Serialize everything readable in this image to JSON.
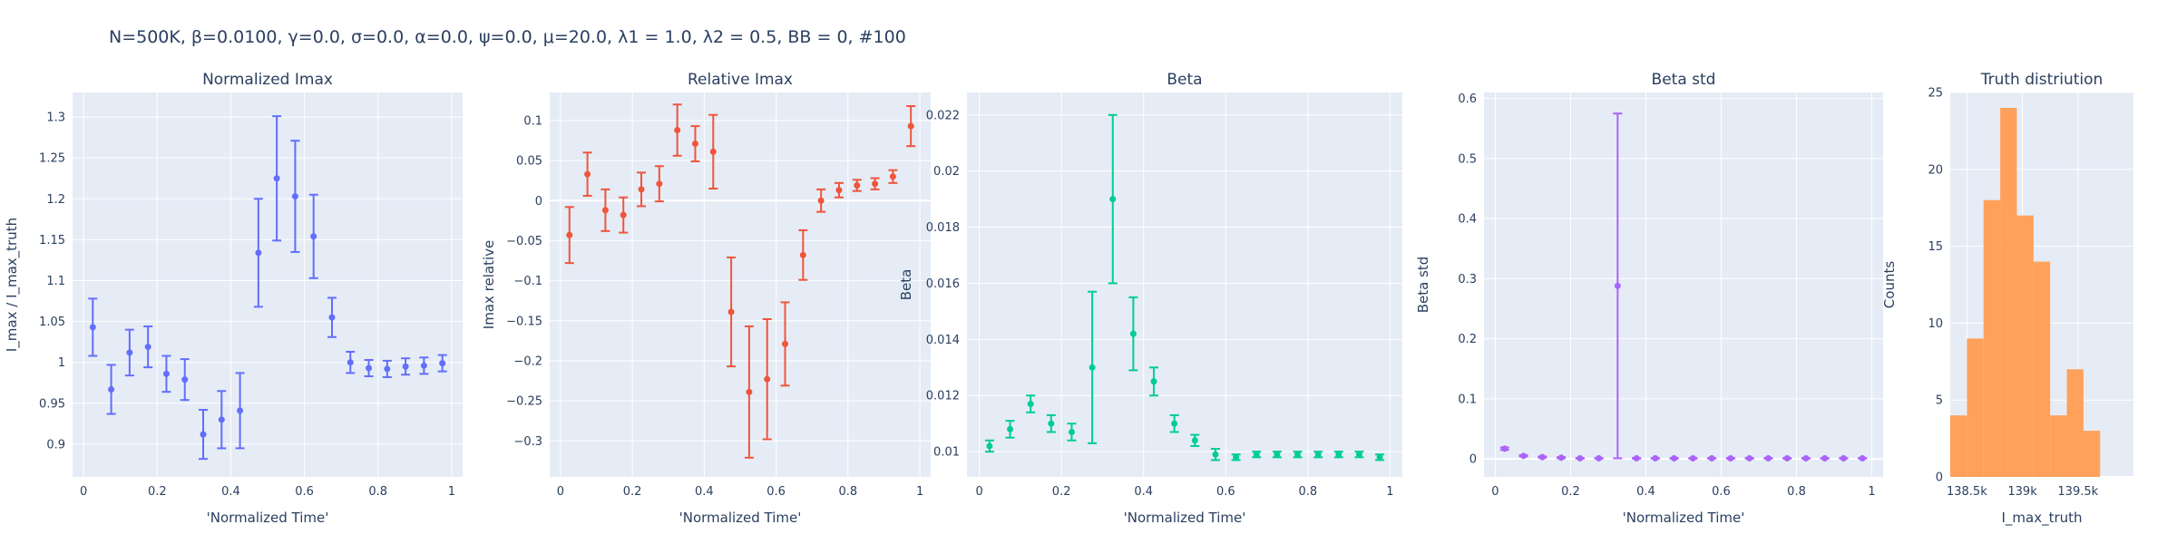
{
  "suptitle": "N=500K, β=0.0100, γ=0.0, σ=0.0,  α=0.0, ψ=0.0, μ=20.0, λ1 = 1.0, λ2 = 0.5, BB = 0, #100",
  "colors": {
    "background": "#e5ecf6",
    "grid": "#ffffff",
    "text": "#2a3f5f",
    "normalized_imax": "#636efa",
    "relative_imax": "#ef553b",
    "beta": "#00cc96",
    "beta_std": "#ab63fa",
    "histogram": "#ffa15a"
  },
  "chart_data": [
    {
      "type": "scatter",
      "title": "Normalized Imax",
      "xlabel": "'Normalized Time'",
      "ylabel": "I_max / I_max_truth",
      "xlim": [
        -0.03,
        1.03
      ],
      "ylim": [
        0.86,
        1.33
      ],
      "xticks": [
        0,
        0.2,
        0.4,
        0.6,
        0.8,
        1
      ],
      "xtick_labels": [
        "0",
        "0.2",
        "0.4",
        "0.6",
        "0.8",
        "1"
      ],
      "yticks": [
        0.9,
        0.95,
        1,
        1.05,
        1.1,
        1.15,
        1.2,
        1.25,
        1.3
      ],
      "ytick_labels": [
        "0.9",
        "0.95",
        "1",
        "1.05",
        "1.1",
        "1.15",
        "1.2",
        "1.25",
        "1.3"
      ],
      "zeroline_y": false,
      "color": "normalized_imax",
      "x": [
        0.025,
        0.075,
        0.125,
        0.175,
        0.225,
        0.275,
        0.325,
        0.375,
        0.425,
        0.475,
        0.525,
        0.575,
        0.625,
        0.675,
        0.725,
        0.775,
        0.825,
        0.875,
        0.925,
        0.975
      ],
      "y": [
        1.043,
        0.967,
        1.012,
        1.019,
        0.986,
        0.979,
        0.912,
        0.93,
        0.941,
        1.134,
        1.225,
        1.203,
        1.154,
        1.055,
        1.0,
        0.993,
        0.992,
        0.995,
        0.996,
        0.999
      ],
      "err": [
        0.035,
        0.03,
        0.028,
        0.025,
        0.022,
        0.025,
        0.03,
        0.035,
        0.046,
        0.066,
        0.076,
        0.068,
        0.051,
        0.024,
        0.013,
        0.01,
        0.01,
        0.01,
        0.01,
        0.01
      ]
    },
    {
      "type": "scatter",
      "title": "Relative Imax",
      "xlabel": "'Normalized Time'",
      "ylabel": "Imax relative",
      "xlim": [
        -0.03,
        1.03
      ],
      "ylim": [
        -0.345,
        0.135
      ],
      "xticks": [
        0,
        0.2,
        0.4,
        0.6,
        0.8,
        1
      ],
      "xtick_labels": [
        "0",
        "0.2",
        "0.4",
        "0.6",
        "0.8",
        "1"
      ],
      "yticks": [
        -0.3,
        -0.25,
        -0.2,
        -0.15,
        -0.1,
        -0.05,
        0,
        0.05,
        0.1
      ],
      "ytick_labels": [
        "−0.3",
        "−0.25",
        "−0.2",
        "−0.15",
        "−0.1",
        "−0.05",
        "0",
        "0.05",
        "0.1"
      ],
      "zeroline_y": true,
      "color": "relative_imax",
      "x": [
        0.025,
        0.075,
        0.125,
        0.175,
        0.225,
        0.275,
        0.325,
        0.375,
        0.425,
        0.475,
        0.525,
        0.575,
        0.625,
        0.675,
        0.725,
        0.775,
        0.825,
        0.875,
        0.925,
        0.975
      ],
      "y": [
        -0.043,
        0.033,
        -0.012,
        -0.018,
        0.014,
        0.021,
        0.088,
        0.071,
        0.061,
        -0.139,
        -0.239,
        -0.223,
        -0.179,
        -0.068,
        0.0,
        0.013,
        0.019,
        0.021,
        0.03,
        0.093
      ],
      "err": [
        0.035,
        0.027,
        0.026,
        0.022,
        0.021,
        0.022,
        0.032,
        0.022,
        0.046,
        0.068,
        0.082,
        0.075,
        0.052,
        0.031,
        0.014,
        0.009,
        0.007,
        0.007,
        0.008,
        0.025
      ]
    },
    {
      "type": "scatter",
      "title": "Beta",
      "xlabel": "'Normalized Time'",
      "ylabel": "Beta",
      "xlim": [
        -0.03,
        1.03
      ],
      "ylim": [
        0.0091,
        0.0228
      ],
      "xticks": [
        0,
        0.2,
        0.4,
        0.6,
        0.8,
        1
      ],
      "xtick_labels": [
        "0",
        "0.2",
        "0.4",
        "0.6",
        "0.8",
        "1"
      ],
      "yticks": [
        0.01,
        0.012,
        0.014,
        0.016,
        0.018,
        0.02,
        0.022
      ],
      "ytick_labels": [
        "0.01",
        "0.012",
        "0.014",
        "0.016",
        "0.018",
        "0.02",
        "0.022"
      ],
      "zeroline_y": false,
      "color": "beta",
      "x": [
        0.025,
        0.075,
        0.125,
        0.175,
        0.225,
        0.275,
        0.325,
        0.375,
        0.425,
        0.475,
        0.525,
        0.575,
        0.625,
        0.675,
        0.725,
        0.775,
        0.825,
        0.875,
        0.925,
        0.975
      ],
      "y": [
        0.0102,
        0.0108,
        0.0117,
        0.011,
        0.0107,
        0.013,
        0.019,
        0.0142,
        0.0125,
        0.011,
        0.0104,
        0.0099,
        0.0098,
        0.0099,
        0.0099,
        0.0099,
        0.0099,
        0.0099,
        0.0099,
        0.0098
      ],
      "err": [
        0.0002,
        0.0003,
        0.0003,
        0.0003,
        0.0003,
        0.0027,
        0.003,
        0.0013,
        0.0005,
        0.0003,
        0.0002,
        0.0002,
        0.0001,
        0.0001,
        0.0001,
        0.0001,
        0.0001,
        0.0001,
        0.0001,
        0.0001
      ]
    },
    {
      "type": "scatter",
      "title": "Beta std",
      "xlabel": "'Normalized Time'",
      "ylabel": "Beta std",
      "xlim": [
        -0.03,
        1.03
      ],
      "ylim": [
        -0.03,
        0.61
      ],
      "xticks": [
        0,
        0.2,
        0.4,
        0.6,
        0.8,
        1
      ],
      "xtick_labels": [
        "0",
        "0.2",
        "0.4",
        "0.6",
        "0.8",
        "1"
      ],
      "yticks": [
        0,
        0.1,
        0.2,
        0.3,
        0.4,
        0.5,
        0.6
      ],
      "ytick_labels": [
        "0",
        "0.1",
        "0.2",
        "0.3",
        "0.4",
        "0.5",
        "0.6"
      ],
      "zeroline_y": true,
      "color": "beta_std",
      "x": [
        0.025,
        0.075,
        0.125,
        0.175,
        0.225,
        0.275,
        0.325,
        0.375,
        0.425,
        0.475,
        0.525,
        0.575,
        0.625,
        0.675,
        0.725,
        0.775,
        0.825,
        0.875,
        0.925,
        0.975
      ],
      "y": [
        0.017,
        0.005,
        0.003,
        0.002,
        0.001,
        0.001,
        0.288,
        0.001,
        0.001,
        0.001,
        0.001,
        0.001,
        0.001,
        0.001,
        0.001,
        0.001,
        0.001,
        0.001,
        0.001,
        0.001
      ],
      "err": [
        0.002,
        0.001,
        0.001,
        0.001,
        0.0005,
        0.0005,
        0.287,
        0.0005,
        0.0005,
        0.0005,
        0.0005,
        0.0005,
        0.0005,
        0.0005,
        0.0005,
        0.0005,
        0.0005,
        0.0005,
        0.0005,
        0.0005
      ]
    },
    {
      "type": "bar",
      "title": "Truth distriution",
      "xlabel": "I_max_truth",
      "ylabel": "Counts",
      "xlim": [
        138350,
        140000
      ],
      "ylim": [
        0,
        25
      ],
      "xticks": [
        138500,
        139000,
        139500
      ],
      "xtick_labels": [
        "138.5k",
        "139k",
        "139.5k"
      ],
      "yticks": [
        0,
        5,
        10,
        15,
        20,
        25
      ],
      "ytick_labels": [
        "0",
        "5",
        "10",
        "15",
        "20",
        "25"
      ],
      "zeroline_y": true,
      "color": "histogram",
      "bin_edges": [
        138350,
        138500,
        138650,
        138800,
        138950,
        139100,
        139250,
        139400,
        139550,
        139700,
        139850,
        140000
      ],
      "values": [
        4,
        9,
        18,
        24,
        17,
        14,
        4,
        7,
        3,
        0,
        0
      ]
    }
  ]
}
